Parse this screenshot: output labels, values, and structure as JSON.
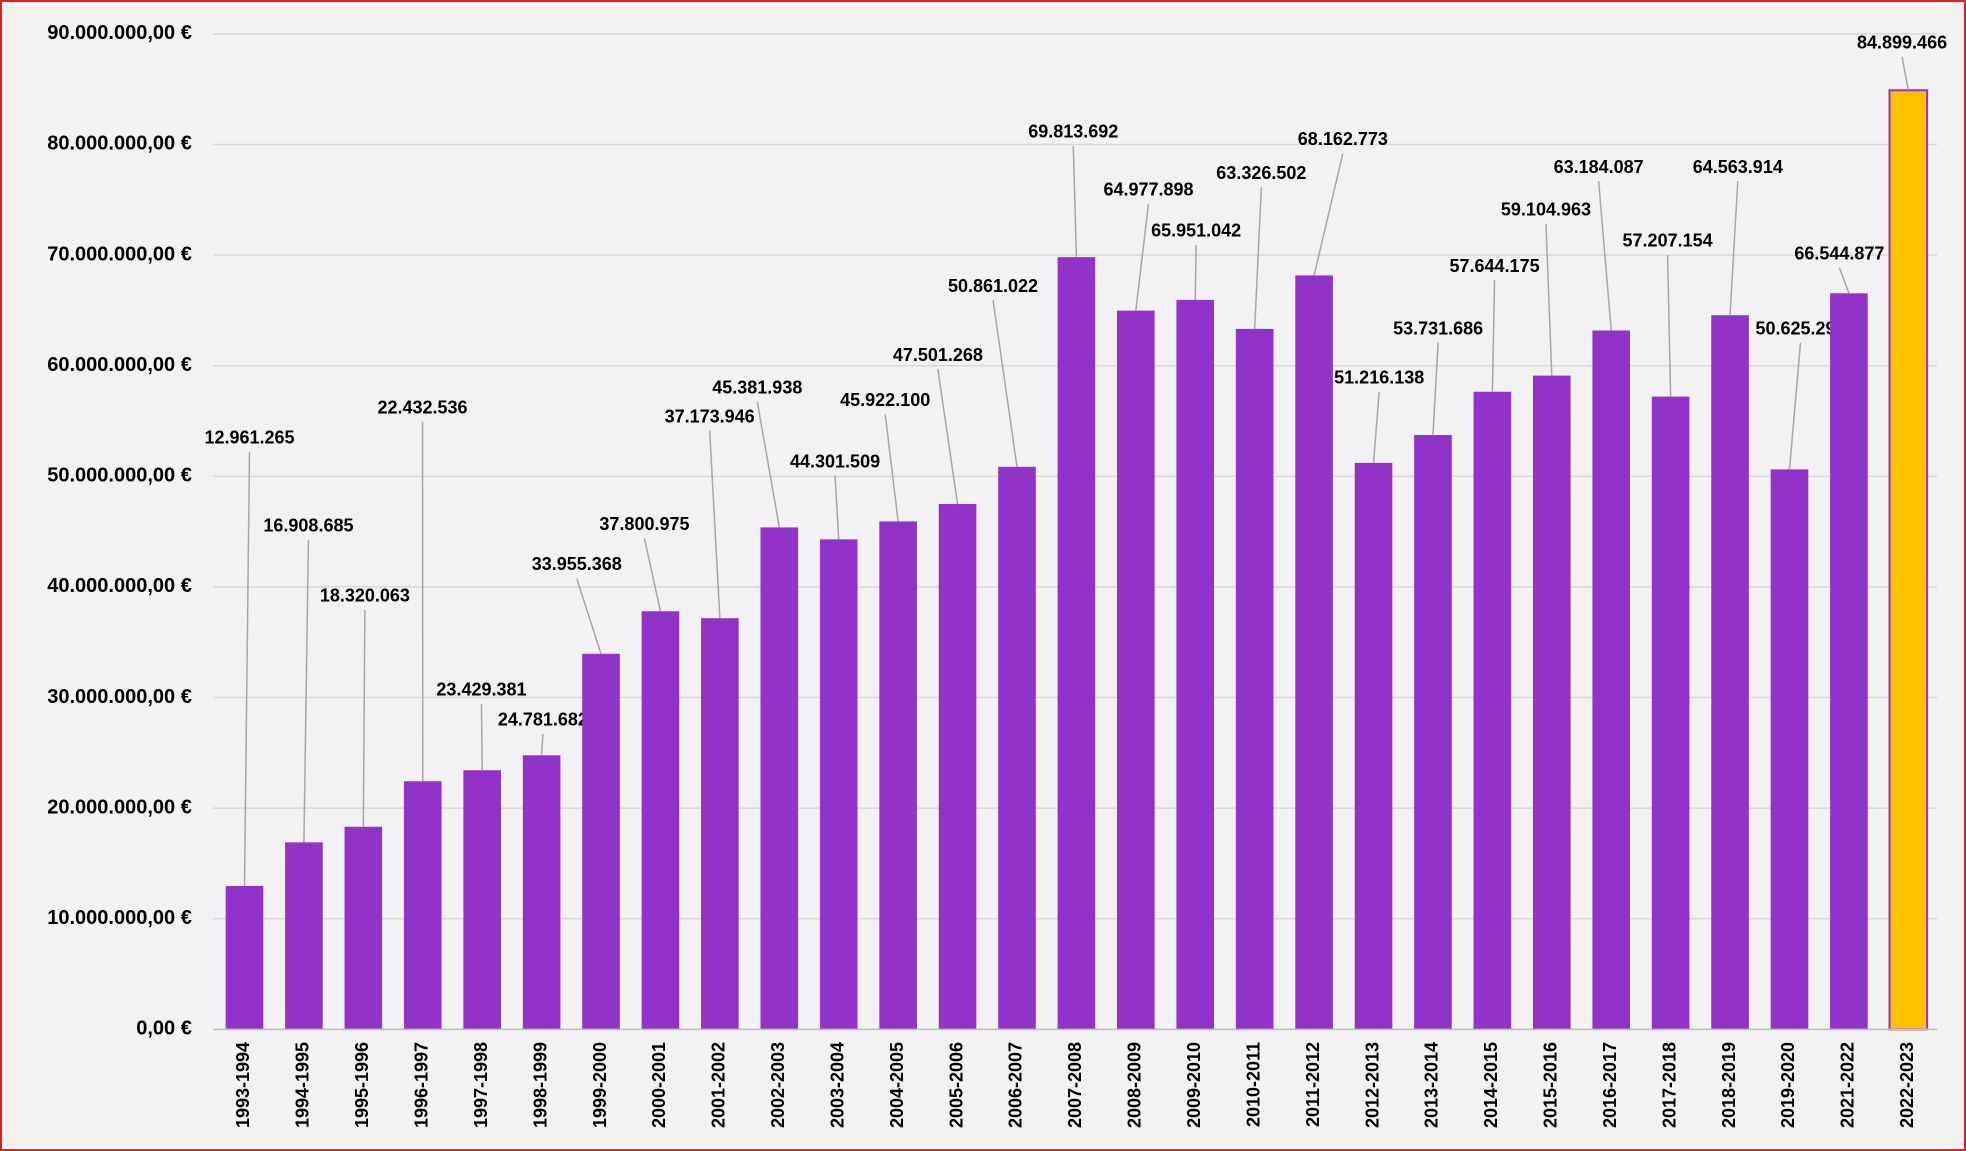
{
  "chart_data": {
    "type": "bar",
    "categories": [
      "1993-1994",
      "1994-1995",
      "1995-1996",
      "1996-1997",
      "1997-1998",
      "1998-1999",
      "1999-2000",
      "2000-2001",
      "2001-2002",
      "2002-2003",
      "2003-2004",
      "2004-2005",
      "2005-2006",
      "2006-2007",
      "2007-2008",
      "2008-2009",
      "2009-2010",
      "2010-2011",
      "2011-2012",
      "2012-2013",
      "2013-2014",
      "2014-2015",
      "2015-2016",
      "2016-2017",
      "2017-2018",
      "2018-2019",
      "2019-2020",
      "2021-2022",
      "2022-2023"
    ],
    "values": [
      12961265,
      16908685,
      18320063,
      22432536,
      23429381,
      24781682,
      33955368,
      37800975,
      37173946,
      45381938,
      44301509,
      45922100,
      47501268,
      50861022,
      69813692,
      64977898,
      65951042,
      63326502,
      68162773,
      51216138,
      53731686,
      57644175,
      59104963,
      63184087,
      57207154,
      64563914,
      50625295,
      66544877,
      84899466
    ],
    "value_labels": [
      "12.961.265",
      "16.908.685",
      "18.320.063",
      "22.432.536",
      "23.429.381",
      "24.781.682",
      "33.955.368",
      "37.800.975",
      "37.173.946",
      "45.381.938",
      "44.301.509",
      "45.922.100",
      "47.501.268",
      "50.861.022",
      "69.813.692",
      "64.977.898",
      "65.951.042",
      "63.326.502",
      "68.162.773",
      "51.216.138",
      "53.731.686",
      "57.644.175",
      "59.104.963",
      "63.184.087",
      "57.207.154",
      "64.563.914",
      "50.625.295",
      "66.544.877",
      "84.899.466"
    ],
    "colors": [
      "#9332c8",
      "#9332c8",
      "#9332c8",
      "#9332c8",
      "#9332c8",
      "#9332c8",
      "#9332c8",
      "#9332c8",
      "#9332c8",
      "#9332c8",
      "#9332c8",
      "#9332c8",
      "#9332c8",
      "#9332c8",
      "#9332c8",
      "#9332c8",
      "#9332c8",
      "#9332c8",
      "#9332c8",
      "#9332c8",
      "#9332c8",
      "#9332c8",
      "#9332c8",
      "#9332c8",
      "#9332c8",
      "#9332c8",
      "#9332c8",
      "#9332c8",
      "#ffc000"
    ],
    "ylim": [
      0,
      90000000
    ],
    "yticks": [
      {
        "value": 0,
        "label": "0,00 €"
      },
      {
        "value": 10000000,
        "label": "10.000.000,00 €"
      },
      {
        "value": 20000000,
        "label": "20.000.000,00 €"
      },
      {
        "value": 30000000,
        "label": "30.000.000,00 €"
      },
      {
        "value": 40000000,
        "label": "40.000.000,00 €"
      },
      {
        "value": 50000000,
        "label": "50.000.000,00 €"
      },
      {
        "value": 60000000,
        "label": "60.000.000,00 €"
      },
      {
        "value": 70000000,
        "label": "70.000.000,00 €"
      },
      {
        "value": 80000000,
        "label": "80.000.000,00 €"
      },
      {
        "value": 90000000,
        "label": "90.000.000,00 €"
      }
    ],
    "grid": true
  }
}
